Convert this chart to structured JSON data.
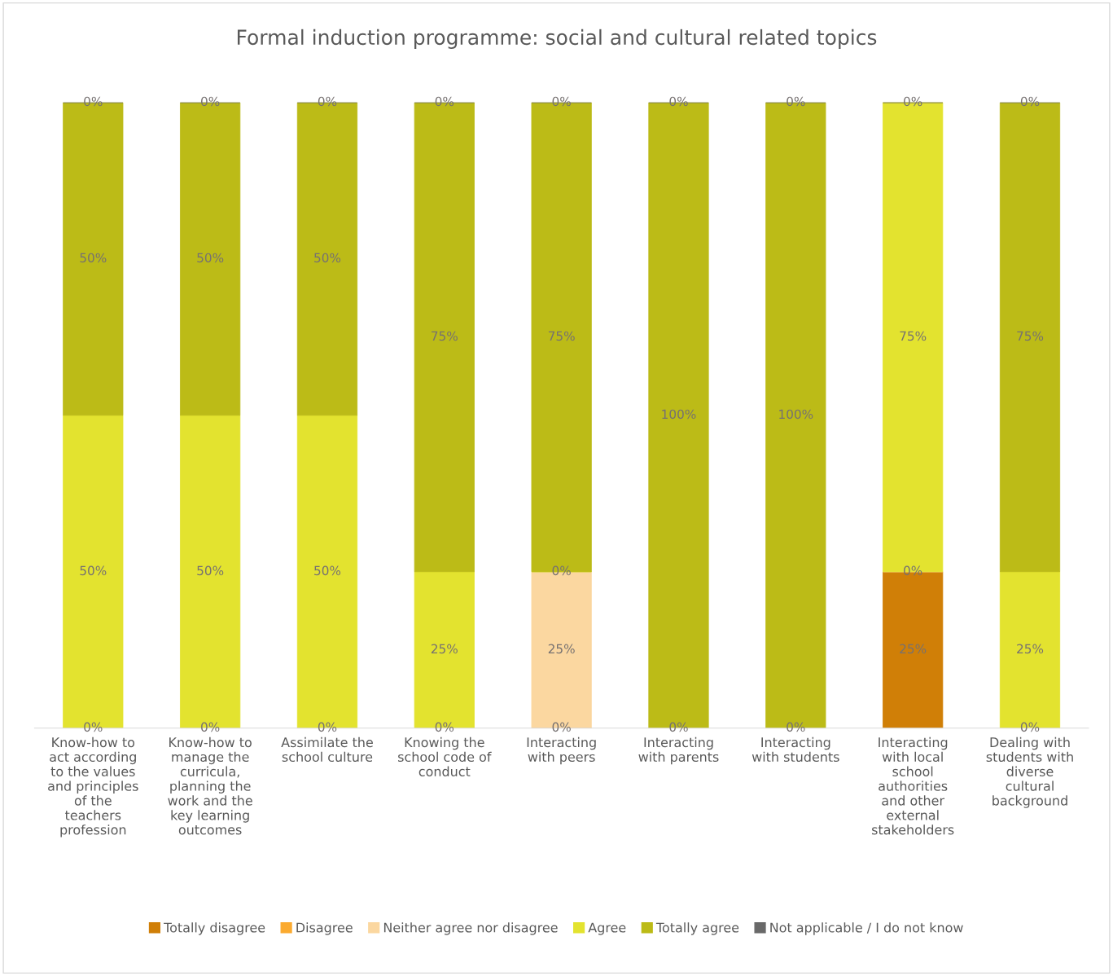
{
  "chart_data": {
    "type": "bar",
    "stacked": true,
    "title": "Formal induction programme: social and cultural related topics",
    "categories": [
      "Know-how to\nact according\nto the values\nand principles\nof the\nteachers\nprofession",
      "Know-how to\nmanage the\ncurricula,\nplanning the\nwork and the\nkey learning\noutcomes",
      "Assimilate the\nschool culture",
      "Knowing the\nschool code of\nconduct",
      "Interacting\nwith peers",
      "Interacting\nwith parents",
      "Interacting\nwith students",
      "Interacting\nwith local\nschool\nauthorities\nand other\nexternal\nstakeholders",
      "Dealing with\nstudents with\ndiverse\ncultural\nbackground"
    ],
    "series": [
      {
        "name": "Totally disagree",
        "color": "#d07f07",
        "values": [
          0,
          0,
          0,
          0,
          0,
          0,
          0,
          25,
          0
        ],
        "value_labels": [
          "0%",
          "0%",
          "0%",
          "0%",
          "0%",
          "0%",
          "0%",
          "25%",
          "0%"
        ]
      },
      {
        "name": "Disagree",
        "color": "#fbaa2f",
        "values": [
          0,
          0,
          0,
          0,
          0,
          0,
          0,
          0,
          0
        ],
        "value_labels": [
          null,
          null,
          null,
          null,
          null,
          null,
          null,
          "0%",
          null
        ]
      },
      {
        "name": "Neither agree nor disagree",
        "color": "#fbd7a0",
        "values": [
          0,
          0,
          0,
          0,
          25,
          0,
          0,
          0,
          0
        ],
        "value_labels": [
          null,
          null,
          null,
          null,
          "25%",
          null,
          null,
          null,
          null
        ]
      },
      {
        "name": "Agree",
        "color": "#e3e32f",
        "values": [
          50,
          50,
          50,
          25,
          0,
          0,
          0,
          75,
          25
        ],
        "value_labels": [
          "50%",
          "50%",
          "50%",
          "25%",
          "0%",
          null,
          null,
          "75%",
          "25%"
        ]
      },
      {
        "name": "Totally agree",
        "color": "#bcbb17",
        "values": [
          50,
          50,
          50,
          75,
          75,
          100,
          100,
          0,
          75
        ],
        "value_labels": [
          "50%",
          "50%",
          "50%",
          "75%",
          "75%",
          "100%",
          "100%",
          null,
          "75%"
        ]
      },
      {
        "name": "Not applicable / I do not know",
        "color": "#696969",
        "values": [
          0,
          0,
          0,
          0,
          0,
          0,
          0,
          0,
          0
        ],
        "value_labels": [
          "0%",
          "0%",
          "0%",
          "0%",
          "0%",
          "0%",
          "0%",
          "0%",
          "0%"
        ]
      }
    ],
    "legend": "bottom",
    "grid": false,
    "tick_labels": "x"
  }
}
